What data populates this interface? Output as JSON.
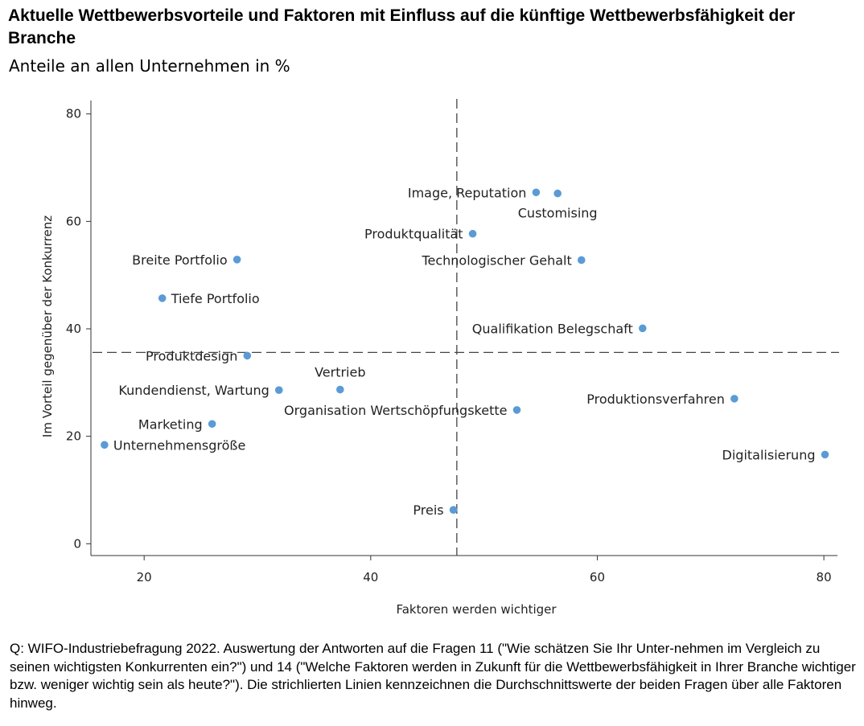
{
  "title": "Aktuelle Wettbewerbsvorteile und Faktoren mit Einfluss auf die künftige Wettbewerbsfähigkeit der Branche",
  "subtitle": "Anteile an allen Unternehmen in %",
  "footnote": "Q: WIFO-Industriebefragung 2022. Auswertung der Antworten auf die Fragen 11 (\"Wie schätzen Sie Ihr Unter-nehmen im Vergleich zu seinen wichtigsten Konkurrenten ein?\") und 14 (\"Welche Faktoren werden in Zukunft für die Wettbewerbsfähigkeit in Ihrer Branche wichtiger bzw. weniger wichtig sein als heute?\"). Die strichlierten Linien kennzeichnen die Durchschnittswerte der beiden Fragen über alle Faktoren hinweg.",
  "chart_data": {
    "type": "scatter",
    "xlabel": "Faktoren werden wichtiger",
    "ylabel": "Im Vorteil gegenüber der Konkurrenz",
    "xlim": [
      15.3,
      81.2
    ],
    "ylim": [
      -2.2,
      82.5
    ],
    "xticks": [
      20,
      40,
      60,
      80
    ],
    "yticks": [
      0,
      20,
      40,
      60,
      80
    ],
    "grid": false,
    "point_color": "#5b9bd5",
    "reference_lines": {
      "x_mean": 47.6,
      "y_mean": 35.6
    },
    "points": [
      {
        "label": "Image, Reputation",
        "x": 54.6,
        "y": 65.4,
        "anchor": "end"
      },
      {
        "label": "Customising",
        "x": 56.5,
        "y": 65.2,
        "anchor": "below"
      },
      {
        "label": "Produktqualität",
        "x": 49.0,
        "y": 57.7,
        "anchor": "end"
      },
      {
        "label": "Technologischer Gehalt",
        "x": 58.6,
        "y": 52.8,
        "anchor": "end"
      },
      {
        "label": "Breite Portfolio",
        "x": 28.2,
        "y": 52.9,
        "anchor": "end"
      },
      {
        "label": "Tiefe Portfolio",
        "x": 21.6,
        "y": 45.7,
        "anchor": "start"
      },
      {
        "label": "Qualifikation Belegschaft",
        "x": 64.0,
        "y": 40.1,
        "anchor": "end"
      },
      {
        "label": "Produktdesign",
        "x": 29.1,
        "y": 35.0,
        "anchor": "end"
      },
      {
        "label": "Vertrieb",
        "x": 37.3,
        "y": 28.7,
        "anchor": "above"
      },
      {
        "label": "Kundendienst, Wartung",
        "x": 31.9,
        "y": 28.6,
        "anchor": "end"
      },
      {
        "label": "Produktionsverfahren",
        "x": 72.1,
        "y": 27.0,
        "anchor": "end"
      },
      {
        "label": "Organisation Wertschöpfungskette",
        "x": 52.9,
        "y": 24.9,
        "anchor": "end"
      },
      {
        "label": "Marketing",
        "x": 26.0,
        "y": 22.3,
        "anchor": "end"
      },
      {
        "label": "Unternehmensgröße",
        "x": 16.5,
        "y": 18.4,
        "anchor": "start"
      },
      {
        "label": "Digitalisierung",
        "x": 80.1,
        "y": 16.6,
        "anchor": "end"
      },
      {
        "label": "Preis",
        "x": 47.3,
        "y": 6.3,
        "anchor": "end"
      }
    ]
  }
}
